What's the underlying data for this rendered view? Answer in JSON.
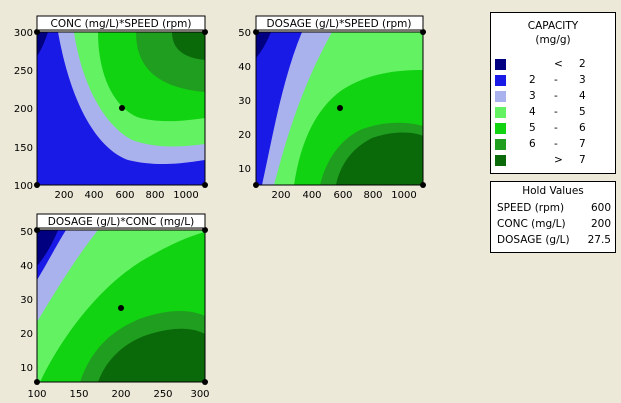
{
  "chart_data": [
    {
      "type": "contour",
      "title": "CONC (mg/L)*SPEED (rpm)",
      "x_ticks": [
        "200",
        "400",
        "600",
        "800",
        "1000"
      ],
      "y_ticks": [
        "100",
        "150",
        "200",
        "250",
        "300"
      ],
      "xlim": [
        50,
        1150
      ],
      "ylim": [
        100,
        300
      ],
      "hold_point": {
        "x": 600,
        "y": 200
      }
    },
    {
      "type": "contour",
      "title": "DOSAGE (g/L)*SPEED (rpm)",
      "x_ticks": [
        "200",
        "400",
        "600",
        "800",
        "1000"
      ],
      "y_ticks": [
        "10",
        "20",
        "30",
        "40",
        "50"
      ],
      "xlim": [
        50,
        1150
      ],
      "ylim": [
        5,
        50
      ],
      "hold_point": {
        "x": 600,
        "y": 27.5
      }
    },
    {
      "type": "contour",
      "title": "DOSAGE (g/L)*CONC (mg/L)",
      "x_ticks": [
        "100",
        "150",
        "200",
        "250",
        "300"
      ],
      "y_ticks": [
        "10",
        "20",
        "30",
        "40",
        "50"
      ],
      "xlim": [
        100,
        300
      ],
      "ylim": [
        5,
        50
      ],
      "hold_point": {
        "x": 200,
        "y": 27.5
      }
    }
  ],
  "legend": {
    "title_line1": "CAPACITY",
    "title_line2": "(mg/g)",
    "items": [
      {
        "lo": "",
        "dash": "<",
        "hi": "2",
        "color": "#000080"
      },
      {
        "lo": "2",
        "dash": "-",
        "hi": "3",
        "color": "#1a1ae6"
      },
      {
        "lo": "3",
        "dash": "-",
        "hi": "4",
        "color": "#aab2ee"
      },
      {
        "lo": "4",
        "dash": "-",
        "hi": "5",
        "color": "#62f262"
      },
      {
        "lo": "5",
        "dash": "-",
        "hi": "6",
        "color": "#11d311"
      },
      {
        "lo": "6",
        "dash": "-",
        "hi": "7",
        "color": "#209e20"
      },
      {
        "lo": "",
        "dash": ">",
        "hi": "7",
        "color": "#0a6a0a"
      }
    ]
  },
  "hold": {
    "title": "Hold Values",
    "rows": [
      {
        "label": "SPEED (rpm)",
        "value": "600"
      },
      {
        "label": "CONC (mg/L)",
        "value": "200"
      },
      {
        "label": "DOSAGE (g/L)",
        "value": "27.5"
      }
    ]
  }
}
